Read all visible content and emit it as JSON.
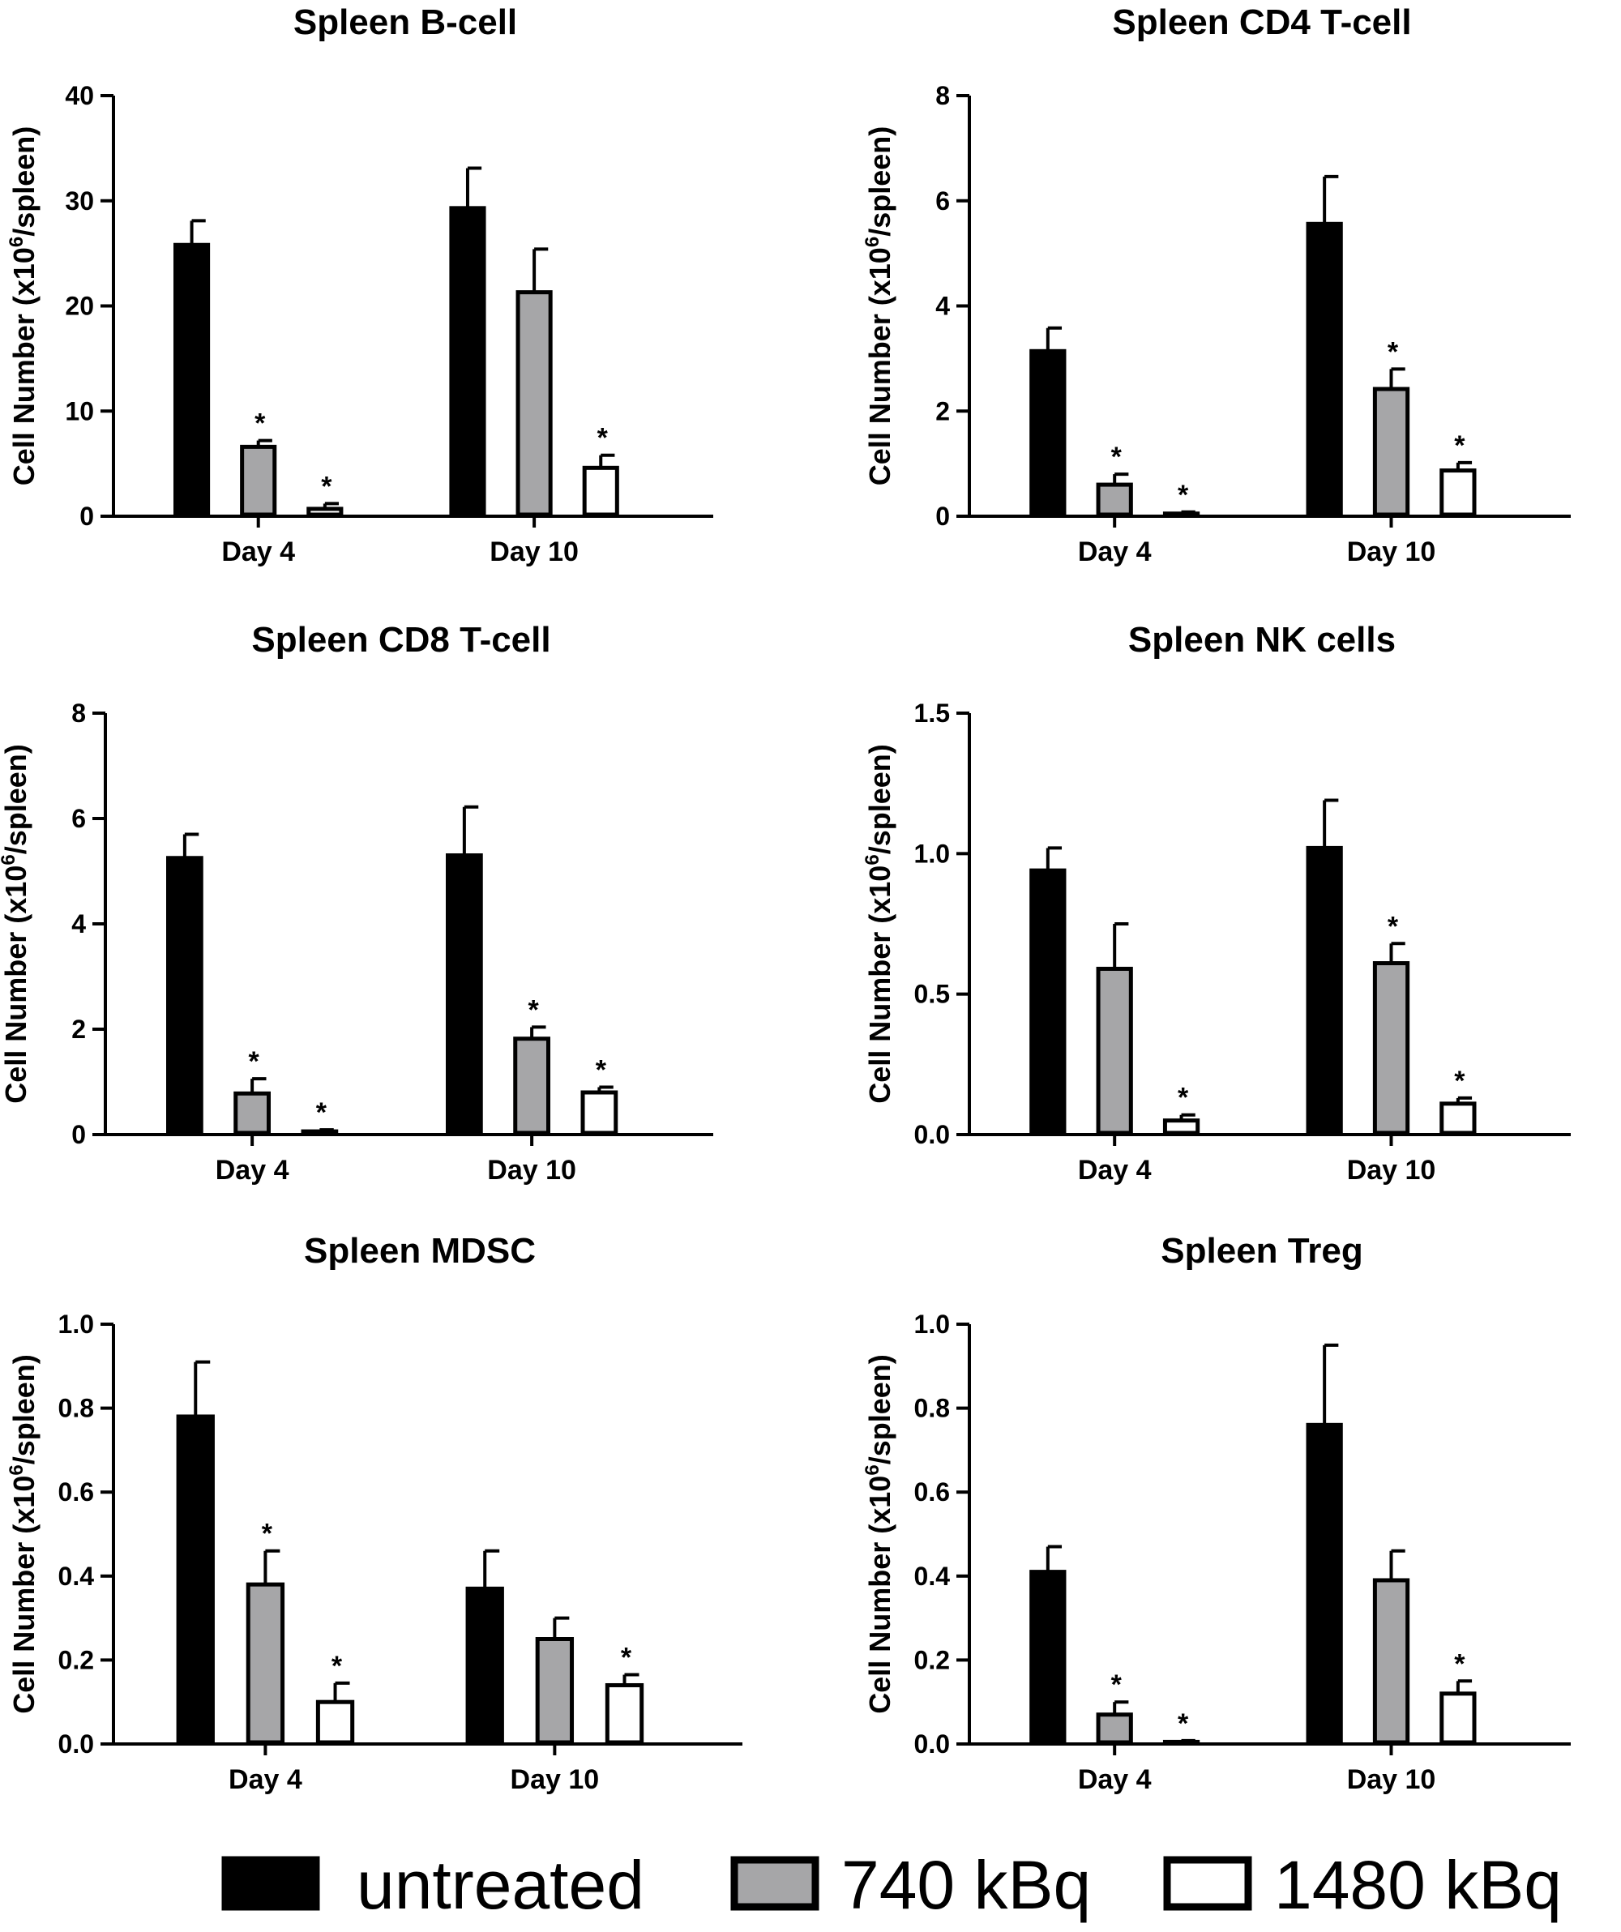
{
  "ylabel": "Cell Number (x10^6/spleen)",
  "ylabel_parts": {
    "main": "Cell Number (x10",
    "superscript": "6",
    "tail": "/spleen)"
  },
  "colors": {
    "untreated": "#000000",
    "740 kBq": "#a6a6a8",
    "1480 kBq": "#ffffff",
    "axis": "#000000"
  },
  "legend": [
    {
      "name": "untreated",
      "fill": "#000000"
    },
    {
      "name": "740 kBq",
      "fill": "#a6a6a8"
    },
    {
      "name": "1480 kBq",
      "fill": "#ffffff"
    }
  ],
  "chart_data": [
    {
      "type": "bar",
      "title": "Spleen B-cell",
      "ylabel": "Cell Number (x10^6/spleen)",
      "categories": [
        "Day 4",
        "Day 10"
      ],
      "ylim": [
        0,
        40
      ],
      "yticks": [
        0,
        10,
        20,
        30,
        40
      ],
      "ytick_labels": [
        "0",
        "10",
        "20",
        "30",
        "40"
      ],
      "series": [
        {
          "name": "untreated",
          "values": [
            25.8,
            29.3
          ],
          "errors": [
            2.3,
            3.8
          ],
          "significant": [
            false,
            false
          ]
        },
        {
          "name": "740 kBq",
          "values": [
            6.6,
            21.3
          ],
          "errors": [
            0.6,
            4.1
          ],
          "significant": [
            true,
            false
          ]
        },
        {
          "name": "1480 kBq",
          "values": [
            0.7,
            4.6
          ],
          "errors": [
            0.5,
            1.2
          ],
          "significant": [
            true,
            true
          ]
        }
      ]
    },
    {
      "type": "bar",
      "title": "Spleen CD4 T-cell",
      "ylabel": "Cell Number (x10^6/spleen)",
      "categories": [
        "Day 4",
        "Day 10"
      ],
      "ylim": [
        0,
        8
      ],
      "yticks": [
        0,
        2,
        4,
        6,
        8
      ],
      "ytick_labels": [
        "0",
        "2",
        "4",
        "6",
        "8"
      ],
      "series": [
        {
          "name": "untreated",
          "values": [
            3.14,
            5.56
          ],
          "errors": [
            0.44,
            0.9
          ],
          "significant": [
            false,
            false
          ]
        },
        {
          "name": "740 kBq",
          "values": [
            0.6,
            2.42
          ],
          "errors": [
            0.2,
            0.38
          ],
          "significant": [
            true,
            true
          ]
        },
        {
          "name": "1480 kBq",
          "values": [
            0.05,
            0.87
          ],
          "errors": [
            0.03,
            0.15
          ],
          "significant": [
            true,
            true
          ]
        }
      ]
    },
    {
      "type": "bar",
      "title": "Spleen CD8 T-cell",
      "ylabel": "Cell Number (x10^6/spleen)",
      "categories": [
        "Day 4",
        "Day 10"
      ],
      "ylim": [
        0,
        8
      ],
      "yticks": [
        0,
        2,
        4,
        6,
        8
      ],
      "ytick_labels": [
        "0",
        "2",
        "4",
        "6",
        "8"
      ],
      "series": [
        {
          "name": "untreated",
          "values": [
            5.25,
            5.3
          ],
          "errors": [
            0.45,
            0.92
          ],
          "significant": [
            false,
            false
          ]
        },
        {
          "name": "740 kBq",
          "values": [
            0.78,
            1.82
          ],
          "errors": [
            0.28,
            0.22
          ],
          "significant": [
            true,
            true
          ]
        },
        {
          "name": "1480 kBq",
          "values": [
            0.06,
            0.8
          ],
          "errors": [
            0.03,
            0.1
          ],
          "significant": [
            true,
            true
          ]
        }
      ]
    },
    {
      "type": "bar",
      "title": "Spleen NK cells",
      "ylabel": "Cell Number (x10^6/spleen)",
      "categories": [
        "Day 4",
        "Day 10"
      ],
      "ylim": [
        0,
        1.5
      ],
      "yticks": [
        0,
        0.5,
        1.0,
        1.5
      ],
      "ytick_labels": [
        "0.0",
        "0.5",
        "1.0",
        "1.5"
      ],
      "series": [
        {
          "name": "untreated",
          "values": [
            0.94,
            1.02
          ],
          "errors": [
            0.08,
            0.17
          ],
          "significant": [
            false,
            false
          ]
        },
        {
          "name": "740 kBq",
          "values": [
            0.59,
            0.61
          ],
          "errors": [
            0.16,
            0.07
          ],
          "significant": [
            false,
            true
          ]
        },
        {
          "name": "1480 kBq",
          "values": [
            0.05,
            0.11
          ],
          "errors": [
            0.02,
            0.02
          ],
          "significant": [
            true,
            true
          ]
        }
      ]
    },
    {
      "type": "bar",
      "title": "Spleen MDSC",
      "ylabel": "Cell Number (x10^6/spleen)",
      "categories": [
        "Day 4",
        "Day 10"
      ],
      "ylim": [
        0,
        1.0
      ],
      "yticks": [
        0,
        0.2,
        0.4,
        0.6,
        0.8,
        1.0
      ],
      "ytick_labels": [
        "0.0",
        "0.2",
        "0.4",
        "0.6",
        "0.8",
        "1.0"
      ],
      "series": [
        {
          "name": "untreated",
          "values": [
            0.78,
            0.37
          ],
          "errors": [
            0.13,
            0.09
          ],
          "significant": [
            false,
            false
          ]
        },
        {
          "name": "740 kBq",
          "values": [
            0.38,
            0.25
          ],
          "errors": [
            0.08,
            0.05
          ],
          "significant": [
            true,
            false
          ]
        },
        {
          "name": "1480 kBq",
          "values": [
            0.1,
            0.14
          ],
          "errors": [
            0.045,
            0.025
          ],
          "significant": [
            true,
            true
          ]
        }
      ]
    },
    {
      "type": "bar",
      "title": "Spleen Treg",
      "ylabel": "Cell Number (x10^6/spleen)",
      "categories": [
        "Day 4",
        "Day 10"
      ],
      "ylim": [
        0,
        1.0
      ],
      "yticks": [
        0,
        0.2,
        0.4,
        0.6,
        0.8,
        1.0
      ],
      "ytick_labels": [
        "0.0",
        "0.2",
        "0.4",
        "0.6",
        "0.8",
        "1.0"
      ],
      "series": [
        {
          "name": "untreated",
          "values": [
            0.41,
            0.76
          ],
          "errors": [
            0.06,
            0.19
          ],
          "significant": [
            false,
            false
          ]
        },
        {
          "name": "740 kBq",
          "values": [
            0.07,
            0.39
          ],
          "errors": [
            0.03,
            0.07
          ],
          "significant": [
            true,
            false
          ]
        },
        {
          "name": "1480 kBq",
          "values": [
            0.005,
            0.12
          ],
          "errors": [
            0.003,
            0.03
          ],
          "significant": [
            true,
            true
          ]
        }
      ]
    }
  ]
}
